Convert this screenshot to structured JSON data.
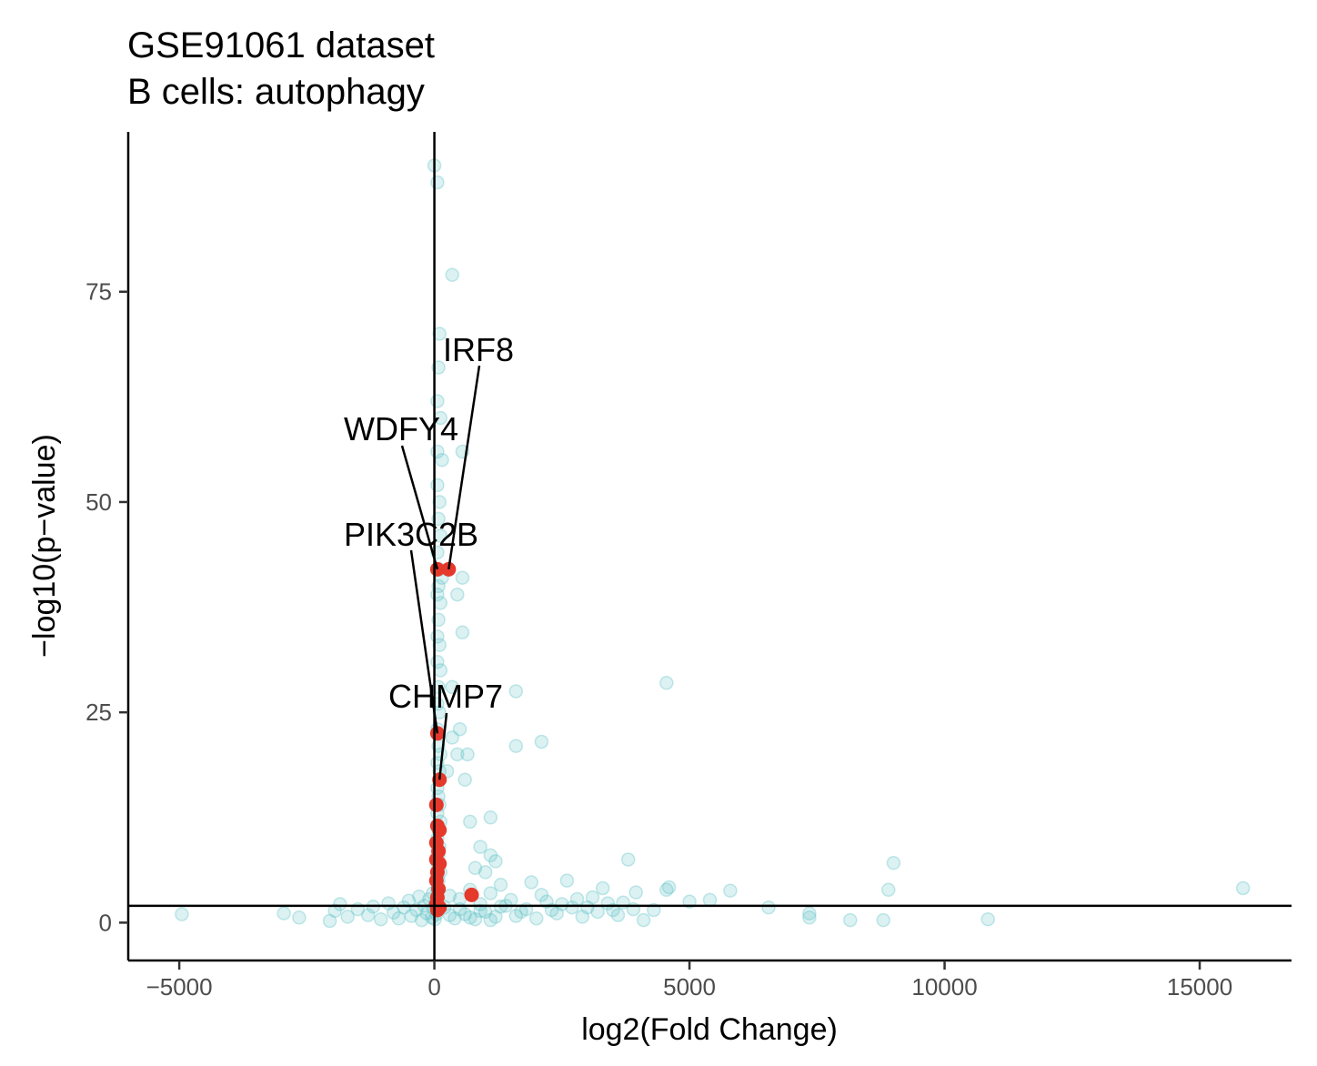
{
  "chart_data": {
    "type": "scatter",
    "title": "GSE91061 dataset",
    "subtitle": "B cells: autophagy",
    "xlabel": "log2(Fold Change)",
    "ylabel": "−log10(p−value)",
    "xlim": [
      -6000,
      16800
    ],
    "ylim": [
      -4.5,
      94
    ],
    "x_ticks": [
      -5000,
      0,
      5000,
      10000,
      15000
    ],
    "x_tick_labels": [
      "−5000",
      "0",
      "5000",
      "10000",
      "15000"
    ],
    "y_ticks": [
      0,
      25,
      50,
      75
    ],
    "y_tick_labels": [
      "0",
      "25",
      "50",
      "75"
    ],
    "grid": false,
    "legend": "none",
    "reference_lines": {
      "vertical_x": 0,
      "horizontal_y": 2
    },
    "colors": {
      "background_points": "#5BBFC4",
      "highlighted_points": "#E4392B"
    },
    "series": [
      {
        "role": "background",
        "points": [
          [
            -4950,
            1
          ],
          [
            -2950,
            1.1
          ],
          [
            -2650,
            0.6
          ],
          [
            -2050,
            0.2
          ],
          [
            -1950,
            1.4
          ],
          [
            -1850,
            2.2
          ],
          [
            -1700,
            0.7
          ],
          [
            -1500,
            1.6
          ],
          [
            -1300,
            0.9
          ],
          [
            -1200,
            1.9
          ],
          [
            -1050,
            0.4
          ],
          [
            -900,
            2.3
          ],
          [
            -800,
            1.2
          ],
          [
            -700,
            0.5
          ],
          [
            -600,
            1.8
          ],
          [
            -500,
            2.6
          ],
          [
            -450,
            0.8
          ],
          [
            -350,
            1.5
          ],
          [
            -300,
            3.1
          ],
          [
            -250,
            0.3
          ],
          [
            -200,
            2.0
          ],
          [
            -150,
            1.1
          ],
          [
            -100,
            2.8
          ],
          [
            -50,
            0.6
          ],
          [
            -30,
            3.5
          ],
          [
            -20,
            1.7
          ],
          [
            10,
            0.4
          ],
          [
            20,
            2.4
          ],
          [
            40,
            1.0
          ],
          [
            0,
            90
          ],
          [
            60,
            88
          ],
          [
            350,
            77
          ],
          [
            100,
            70
          ],
          [
            80,
            66
          ],
          [
            60,
            62
          ],
          [
            120,
            60
          ],
          [
            60,
            56
          ],
          [
            150,
            55
          ],
          [
            60,
            52
          ],
          [
            550,
            56
          ],
          [
            100,
            50
          ],
          [
            80,
            48
          ],
          [
            120,
            46
          ],
          [
            60,
            44
          ],
          [
            100,
            42
          ],
          [
            150,
            41
          ],
          [
            80,
            40
          ],
          [
            60,
            39
          ],
          [
            120,
            38
          ],
          [
            80,
            36
          ],
          [
            60,
            34
          ],
          [
            100,
            33
          ],
          [
            60,
            31
          ],
          [
            120,
            30
          ],
          [
            80,
            28
          ],
          [
            60,
            26
          ],
          [
            100,
            25
          ],
          [
            60,
            23
          ],
          [
            80,
            21
          ],
          [
            120,
            20
          ],
          [
            60,
            19
          ],
          [
            100,
            18
          ],
          [
            60,
            16
          ],
          [
            80,
            15
          ],
          [
            100,
            14
          ],
          [
            60,
            13
          ],
          [
            120,
            12
          ],
          [
            80,
            11
          ],
          [
            60,
            10
          ],
          [
            100,
            9
          ],
          [
            80,
            8
          ],
          [
            60,
            7
          ],
          [
            120,
            6
          ],
          [
            80,
            5
          ],
          [
            60,
            4
          ],
          [
            550,
            41
          ],
          [
            450,
            39
          ],
          [
            550,
            34.5
          ],
          [
            350,
            28
          ],
          [
            500,
            23
          ],
          [
            350,
            22
          ],
          [
            450,
            20
          ],
          [
            650,
            20
          ],
          [
            250,
            18
          ],
          [
            600,
            17
          ],
          [
            700,
            12
          ],
          [
            1100,
            12.5
          ],
          [
            900,
            9
          ],
          [
            1100,
            8
          ],
          [
            1200,
            7.3
          ],
          [
            800,
            6.5
          ],
          [
            1000,
            6
          ],
          [
            1300,
            4.5
          ],
          [
            1600,
            27.5
          ],
          [
            1600,
            21
          ],
          [
            2100,
            21.5
          ],
          [
            4550,
            28.5
          ],
          [
            300,
            3.2
          ],
          [
            500,
            2.8
          ],
          [
            700,
            3.9
          ],
          [
            900,
            2.2
          ],
          [
            1100,
            3.5
          ],
          [
            1300,
            1.9
          ],
          [
            1500,
            2.7
          ],
          [
            1700,
            1.3
          ],
          [
            1900,
            4.8
          ],
          [
            2100,
            3.3
          ],
          [
            2300,
            1.5
          ],
          [
            2500,
            2.2
          ],
          [
            2600,
            5.0
          ],
          [
            2800,
            2.8
          ],
          [
            3000,
            1.8
          ],
          [
            3100,
            3.0
          ],
          [
            3300,
            4.1
          ],
          [
            3500,
            1.5
          ],
          [
            3700,
            2.4
          ],
          [
            3800,
            7.5
          ],
          [
            3950,
            3.6
          ],
          [
            4100,
            0.3
          ],
          [
            4300,
            1.5
          ],
          [
            4550,
            3.9
          ],
          [
            4600,
            4.2
          ],
          [
            5000,
            2.5
          ],
          [
            5400,
            2.7
          ],
          [
            5800,
            3.8
          ],
          [
            6550,
            1.8
          ],
          [
            7350,
            1.1
          ],
          [
            7350,
            0.6
          ],
          [
            8150,
            0.3
          ],
          [
            8800,
            0.3
          ],
          [
            8900,
            3.9
          ],
          [
            9000,
            7.1
          ],
          [
            10850,
            0.4
          ],
          [
            15850,
            4.1
          ],
          [
            400,
            0.5
          ],
          [
            600,
            1.0
          ],
          [
            800,
            0.4
          ],
          [
            1000,
            1.3
          ],
          [
            1200,
            0.7
          ],
          [
            1400,
            2.0
          ],
          [
            1600,
            0.8
          ],
          [
            1800,
            1.6
          ],
          [
            2000,
            0.5
          ],
          [
            2200,
            2.5
          ],
          [
            2400,
            1.1
          ],
          [
            2700,
            1.8
          ],
          [
            2900,
            0.7
          ],
          [
            3200,
            1.3
          ],
          [
            3400,
            2.3
          ],
          [
            3600,
            0.9
          ],
          [
            3900,
            1.6
          ],
          [
            200,
            1.8
          ],
          [
            300,
            0.9
          ],
          [
            500,
            1.6
          ],
          [
            700,
            0.6
          ],
          [
            900,
            1.4
          ],
          [
            1100,
            0.3
          ]
        ]
      },
      {
        "role": "highlighted",
        "points": [
          [
            60,
            42
          ],
          [
            280,
            42
          ],
          [
            60,
            22.5
          ],
          [
            100,
            17
          ],
          [
            40,
            14
          ],
          [
            60,
            11.5
          ],
          [
            100,
            11
          ],
          [
            40,
            9.5
          ],
          [
            80,
            8.5
          ],
          [
            40,
            7.5
          ],
          [
            100,
            7
          ],
          [
            60,
            6
          ],
          [
            40,
            5
          ],
          [
            80,
            4
          ],
          [
            60,
            3
          ],
          [
            40,
            2.2
          ],
          [
            100,
            1.8
          ],
          [
            730,
            3.3
          ],
          [
            60,
            1.5
          ]
        ]
      }
    ],
    "labels": [
      {
        "text": "IRF8",
        "x": 280,
        "y": 42
      },
      {
        "text": "WDFY4",
        "x": 60,
        "y": 42
      },
      {
        "text": "PIK3C2B",
        "x": 60,
        "y": 22.5
      },
      {
        "text": "CHMP7",
        "x": 100,
        "y": 17
      }
    ]
  }
}
